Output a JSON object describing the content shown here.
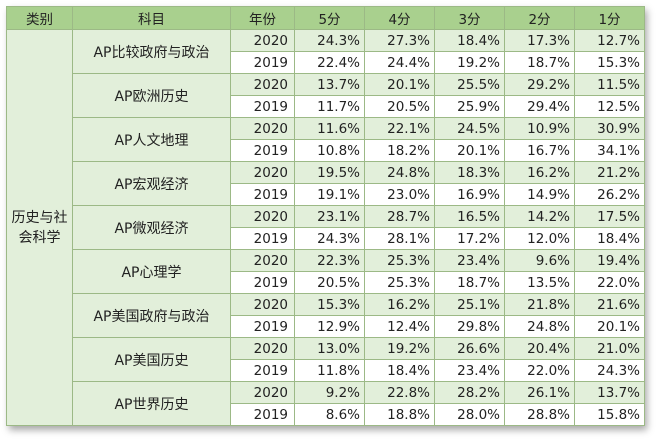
{
  "headers": [
    "类别",
    "科目",
    "年份",
    "5分",
    "4分",
    "3分",
    "2分",
    "1分"
  ],
  "category": "历史与社会科学",
  "subjects": [
    {
      "name": "AP比较政府与政治",
      "rows": [
        {
          "year": "2020",
          "scores": [
            "24.3%",
            "27.3%",
            "18.4%",
            "17.3%",
            "12.7%"
          ]
        },
        {
          "year": "2019",
          "scores": [
            "22.4%",
            "24.4%",
            "19.2%",
            "18.7%",
            "15.3%"
          ]
        }
      ]
    },
    {
      "name": "AP欧洲历史",
      "rows": [
        {
          "year": "2020",
          "scores": [
            "13.7%",
            "20.1%",
            "25.5%",
            "29.2%",
            "11.5%"
          ]
        },
        {
          "year": "2019",
          "scores": [
            "11.7%",
            "20.5%",
            "25.9%",
            "29.4%",
            "12.5%"
          ]
        }
      ]
    },
    {
      "name": "AP人文地理",
      "rows": [
        {
          "year": "2020",
          "scores": [
            "11.6%",
            "22.1%",
            "24.5%",
            "10.9%",
            "30.9%"
          ]
        },
        {
          "year": "2019",
          "scores": [
            "10.8%",
            "18.2%",
            "20.1%",
            "16.7%",
            "34.1%"
          ]
        }
      ]
    },
    {
      "name": "AP宏观经济",
      "rows": [
        {
          "year": "2020",
          "scores": [
            "19.5%",
            "24.8%",
            "18.3%",
            "16.2%",
            "21.2%"
          ]
        },
        {
          "year": "2019",
          "scores": [
            "19.1%",
            "23.0%",
            "16.9%",
            "14.9%",
            "26.2%"
          ]
        }
      ]
    },
    {
      "name": "AP微观经济",
      "rows": [
        {
          "year": "2020",
          "scores": [
            "23.1%",
            "28.7%",
            "16.5%",
            "14.2%",
            "17.5%"
          ]
        },
        {
          "year": "2019",
          "scores": [
            "24.3%",
            "28.1%",
            "17.2%",
            "12.0%",
            "18.4%"
          ]
        }
      ]
    },
    {
      "name": "AP心理学",
      "rows": [
        {
          "year": "2020",
          "scores": [
            "22.3%",
            "25.3%",
            "23.4%",
            "9.6%",
            "19.4%"
          ]
        },
        {
          "year": "2019",
          "scores": [
            "20.5%",
            "25.3%",
            "18.7%",
            "13.5%",
            "22.0%"
          ]
        }
      ]
    },
    {
      "name": "AP美国政府与政治",
      "rows": [
        {
          "year": "2020",
          "scores": [
            "15.3%",
            "16.2%",
            "25.1%",
            "21.8%",
            "21.6%"
          ]
        },
        {
          "year": "2019",
          "scores": [
            "12.9%",
            "12.4%",
            "29.8%",
            "24.8%",
            "20.1%"
          ]
        }
      ]
    },
    {
      "name": "AP美国历史",
      "rows": [
        {
          "year": "2020",
          "scores": [
            "13.0%",
            "19.2%",
            "26.6%",
            "20.4%",
            "21.0%"
          ]
        },
        {
          "year": "2019",
          "scores": [
            "11.8%",
            "18.4%",
            "23.4%",
            "22.0%",
            "24.3%"
          ]
        }
      ]
    },
    {
      "name": "AP世界历史",
      "rows": [
        {
          "year": "2020",
          "scores": [
            "9.2%",
            "22.8%",
            "28.2%",
            "26.1%",
            "13.7%"
          ]
        },
        {
          "year": "2019",
          "scores": [
            "8.6%",
            "18.8%",
            "28.0%",
            "28.8%",
            "15.8%"
          ]
        }
      ]
    }
  ]
}
